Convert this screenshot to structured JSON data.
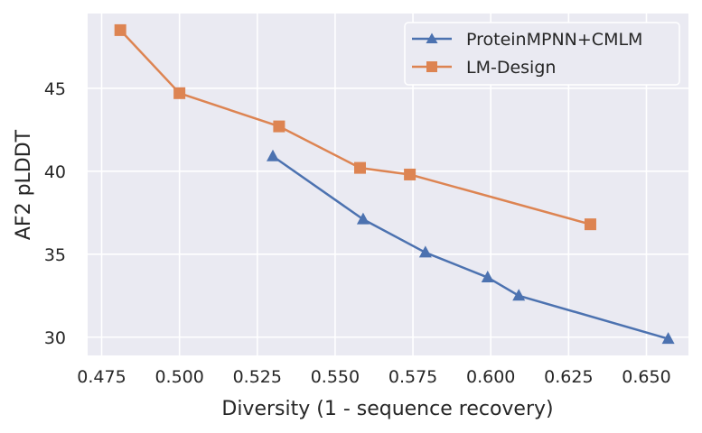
{
  "chart_data": {
    "type": "line",
    "title": "",
    "xlabel": "Diversity (1 - sequence recovery)",
    "ylabel": "AF2 pLDDT",
    "xlim": [
      0.4705,
      0.6635
    ],
    "ylim": [
      28.9,
      49.5
    ],
    "xticks": [
      0.475,
      0.5,
      0.525,
      0.55,
      0.575,
      0.6,
      0.625,
      0.65
    ],
    "xtick_labels": [
      "0.475",
      "0.500",
      "0.525",
      "0.550",
      "0.575",
      "0.600",
      "0.625",
      "0.650"
    ],
    "yticks": [
      30,
      35,
      40,
      45
    ],
    "ytick_labels": [
      "30",
      "35",
      "40",
      "45"
    ],
    "grid": true,
    "legend_position": "top-right",
    "series": [
      {
        "name": "ProteinMPNN+CMLM",
        "color": "#4c72b0",
        "marker": "triangle",
        "x": [
          0.53,
          0.559,
          0.579,
          0.599,
          0.609,
          0.657
        ],
        "y": [
          40.9,
          37.1,
          35.1,
          33.6,
          32.5,
          29.9
        ]
      },
      {
        "name": "LM-Design",
        "color": "#dd8452",
        "marker": "square",
        "x": [
          0.481,
          0.5,
          0.532,
          0.558,
          0.574,
          0.632
        ],
        "y": [
          48.5,
          44.7,
          42.7,
          40.2,
          39.8,
          36.8
        ]
      }
    ]
  }
}
